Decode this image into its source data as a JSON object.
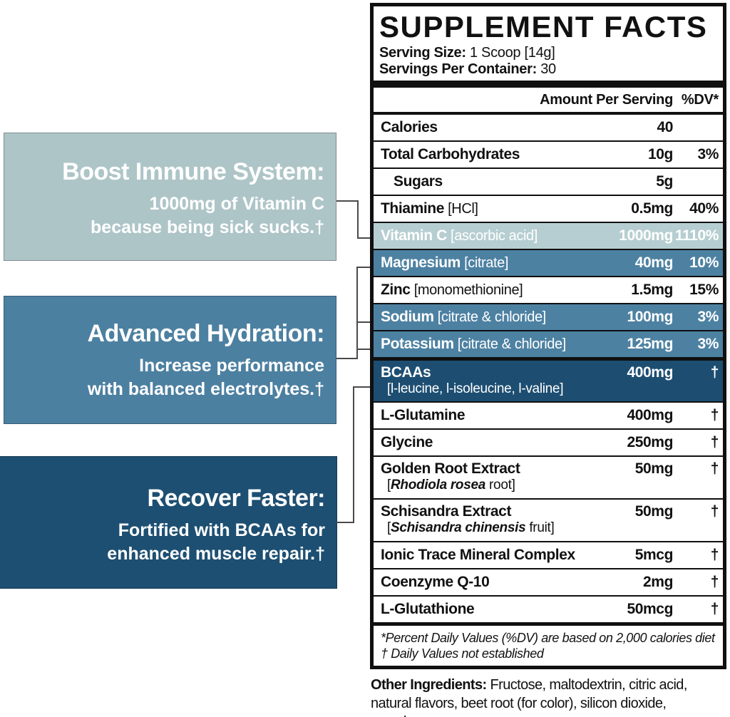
{
  "colors": {
    "row_light": "#b6ced1",
    "row_mid": "#4d81a2",
    "row_dark": "#1d4e72",
    "panel_border": "#101010",
    "connector_line": "#4a4a4a"
  },
  "callouts": [
    {
      "title": "Boost Immune System:",
      "line1": "1000mg of Vitamin C",
      "line2": "because being sick sucks.†",
      "bg": "#aec5c8"
    },
    {
      "title": "Advanced Hydration:",
      "line1": "Increase performance",
      "line2": "with balanced electrolytes.†",
      "bg": "#4c80a1"
    },
    {
      "title": "Recover Faster:",
      "line1": "Fortified with BCAAs for",
      "line2": "enhanced muscle repair.†",
      "bg": "#1d4f72"
    }
  ],
  "panel": {
    "title": "SUPPLEMENT FACTS",
    "serving_size_label": "Serving Size:",
    "serving_size_value": " 1 Scoop [14g]",
    "servings_label": "Servings Per Container:",
    "servings_value": " 30",
    "col_amount": "Amount Per Serving",
    "col_dv": "%DV*",
    "rows": [
      {
        "name": "Calories",
        "bracket": "",
        "amount": "40",
        "dv": "",
        "bg": "white"
      },
      {
        "name": "Total Carbohydrates",
        "bracket": "",
        "amount": "10g",
        "dv": "3%",
        "bg": "white"
      },
      {
        "name": "Sugars",
        "bracket": "",
        "amount": "5g",
        "dv": "",
        "bg": "white",
        "indent": true
      },
      {
        "name": "Thiamine",
        "bracket": "[HCl]",
        "amount": "0.5mg",
        "dv": "40%",
        "bg": "white"
      },
      {
        "name": "Vitamin C",
        "bracket": "[ascorbic acid]",
        "amount": "1000mg",
        "dv": "1110%",
        "bg": "light"
      },
      {
        "name": "Magnesium",
        "bracket": "[citrate]",
        "amount": "40mg",
        "dv": "10%",
        "bg": "mid"
      },
      {
        "name": "Zinc",
        "bracket": "[monomethionine]",
        "amount": "1.5mg",
        "dv": "15%",
        "bg": "white"
      },
      {
        "name": "Sodium",
        "bracket": "[citrate & chloride]",
        "amount": "100mg",
        "dv": "3%",
        "bg": "mid"
      },
      {
        "name": "Potassium",
        "bracket": "[citrate & chloride]",
        "amount": "125mg",
        "dv": "3%",
        "bg": "mid"
      },
      {
        "name": "BCAAs",
        "bracket": "",
        "amount": "400mg",
        "dv": "†",
        "bg": "dark",
        "thick_top": true,
        "bcaas": true,
        "sub": {
          "pre": "[l-leucine, l-isoleucine, l-valine]",
          "italic": "",
          "post": ""
        }
      },
      {
        "name": "L-Glutamine",
        "bracket": "",
        "amount": "400mg",
        "dv": "†",
        "bg": "white"
      },
      {
        "name": "Glycine",
        "bracket": "",
        "amount": "250mg",
        "dv": "†",
        "bg": "white"
      },
      {
        "name": "Golden Root Extract",
        "bracket": "",
        "amount": "50mg",
        "dv": "†",
        "bg": "white",
        "sub": {
          "pre": "[",
          "italic": "Rhodiola rosea",
          "post": " root]"
        }
      },
      {
        "name": "Schisandra Extract",
        "bracket": "",
        "amount": "50mg",
        "dv": "†",
        "bg": "white",
        "sub": {
          "pre": "[",
          "italic": "Schisandra chinensis",
          "post": " fruit]"
        }
      },
      {
        "name": "Ionic Trace Mineral Complex",
        "bracket": "",
        "amount": "5mcg",
        "dv": "†",
        "bg": "white"
      },
      {
        "name": "Coenzyme Q-10",
        "bracket": "",
        "amount": "2mg",
        "dv": "†",
        "bg": "white"
      },
      {
        "name": "L-Glutathione",
        "bracket": "",
        "amount": "50mcg",
        "dv": "†",
        "bg": "white"
      }
    ],
    "footnote1": "*Percent Daily Values (%DV) are based on 2,000 calories diet",
    "footnote2": "† Daily Values not established"
  },
  "other_ingredients": {
    "label": "Other Ingredients:",
    "text": " Fructose, maltodextrin, citric acid, natural flavors, beet root (for color), silicon dioxide, sucralose."
  }
}
